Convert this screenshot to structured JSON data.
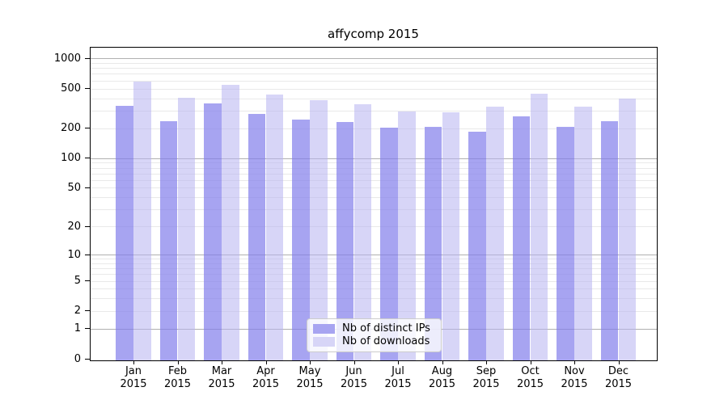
{
  "chart_data": {
    "type": "bar",
    "title": "affycomp 2015",
    "categories": [
      "Jan 2015",
      "Feb 2015",
      "Mar 2015",
      "Apr 2015",
      "May 2015",
      "Jun 2015",
      "Jul 2015",
      "Aug 2015",
      "Sep 2015",
      "Oct 2015",
      "Nov 2015",
      "Dec 2015"
    ],
    "series": [
      {
        "name": "Nb of distinct IPs",
        "color": "#a7a4f1",
        "values": [
          345,
          244,
          367,
          289,
          253,
          238,
          210,
          215,
          192,
          271,
          215,
          242
        ]
      },
      {
        "name": "Nb of downloads",
        "color": "#d7d5f7",
        "values": [
          605,
          420,
          565,
          454,
          400,
          362,
          307,
          300,
          340,
          462,
          342,
          411
        ]
      }
    ],
    "y_axis": {
      "scale": "log10(value+1)",
      "ticks": [
        0,
        1,
        2,
        5,
        10,
        20,
        50,
        100,
        200,
        500,
        1000
      ],
      "major_gridlines": [
        1,
        10,
        100,
        1000
      ],
      "minor_gridlines": [
        2,
        3,
        4,
        5,
        6,
        7,
        8,
        9,
        20,
        30,
        40,
        50,
        60,
        70,
        80,
        90,
        200,
        300,
        400,
        500,
        600,
        700,
        800,
        900
      ]
    },
    "x_axis": {
      "label_lines": 2
    },
    "legend_position": "lower center",
    "grid": true,
    "colors": {
      "major_gridline": "#b0b0b0",
      "minor_gridline": "#e9e9e9",
      "axis": "#000000",
      "background": "#ffffff"
    }
  }
}
